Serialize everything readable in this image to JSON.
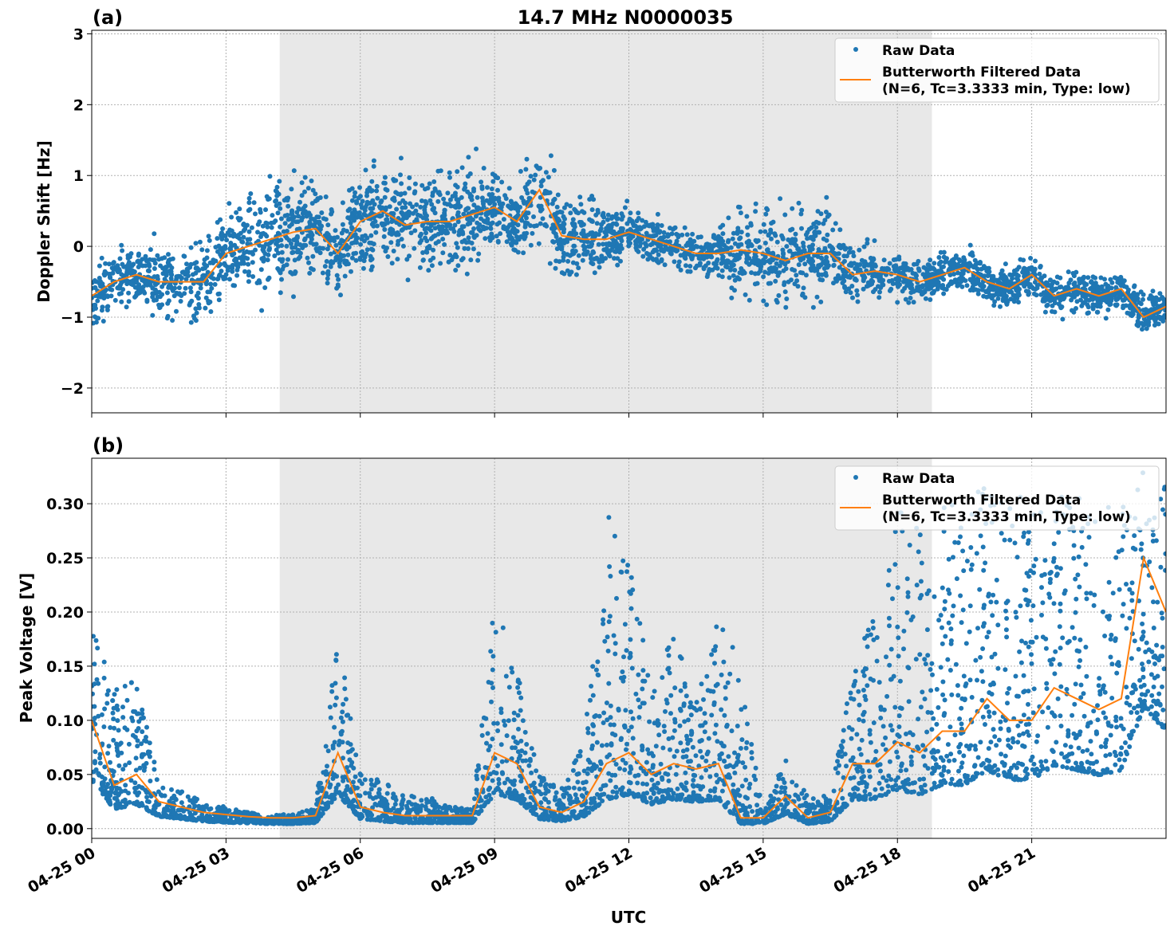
{
  "chart_data": [
    {
      "type": "scatter",
      "panel_label": "(a)",
      "title": "14.7 MHz N0000035",
      "xlabel": "",
      "ylabel": "Doppler Shift [Hz]",
      "xlim_hours": [
        0,
        24
      ],
      "ylim": [
        -2.35,
        3.05
      ],
      "yticks": [
        -2,
        -1,
        0,
        1,
        2,
        3
      ],
      "ytick_labels": [
        "−2",
        "−1",
        "0",
        "1",
        "2",
        "3"
      ],
      "grid": true,
      "shaded_interval_hours": [
        4.2,
        18.77
      ],
      "legend": {
        "position": "top-right",
        "entries": [
          "Raw Data",
          "Butterworth Filtered Data",
          "(N=6, Tc=3.3333 min, Type: low)"
        ]
      },
      "x_hours": [
        0,
        0.5,
        1,
        1.5,
        2,
        2.5,
        3,
        3.5,
        4,
        4.5,
        5,
        5.5,
        6,
        6.5,
        7,
        7.5,
        8,
        8.5,
        9,
        9.5,
        10,
        10.5,
        11,
        11.5,
        12,
        12.5,
        13,
        13.5,
        14,
        14.5,
        15,
        15.5,
        16,
        16.5,
        17,
        17.5,
        18,
        18.5,
        19,
        19.5,
        20,
        20.5,
        21,
        21.5,
        22,
        22.5,
        23,
        23.5,
        24
      ],
      "series": [
        {
          "name": "Butterworth Filtered Data",
          "values": [
            -0.7,
            -0.5,
            -0.4,
            -0.5,
            -0.5,
            -0.5,
            -0.1,
            0.0,
            0.1,
            0.2,
            0.25,
            -0.1,
            0.35,
            0.5,
            0.3,
            0.35,
            0.35,
            0.45,
            0.55,
            0.35,
            0.8,
            0.15,
            0.1,
            0.1,
            0.2,
            0.1,
            0.0,
            -0.1,
            -0.1,
            -0.05,
            -0.1,
            -0.2,
            -0.1,
            -0.1,
            -0.4,
            -0.35,
            -0.4,
            -0.5,
            -0.4,
            -0.3,
            -0.5,
            -0.6,
            -0.4,
            -0.7,
            -0.6,
            -0.7,
            -0.6,
            -1.0,
            -0.85
          ]
        },
        {
          "name": "Raw Data",
          "spread": [
            0.5,
            0.5,
            0.5,
            0.6,
            0.6,
            0.7,
            0.8,
            0.9,
            0.9,
            0.9,
            0.9,
            0.6,
            0.8,
            0.8,
            0.8,
            0.8,
            0.8,
            0.8,
            0.7,
            0.6,
            0.9,
            0.8,
            0.7,
            0.5,
            0.4,
            0.4,
            0.4,
            0.35,
            0.4,
            0.8,
            0.8,
            0.8,
            0.8,
            0.7,
            0.45,
            0.4,
            0.4,
            0.35,
            0.35,
            0.35,
            0.35,
            0.35,
            0.35,
            0.4,
            0.35,
            0.35,
            0.35,
            0.35,
            0.35
          ]
        }
      ],
      "colors": {
        "raw": "#1f77b4",
        "filtered": "#ff7f0e",
        "shade": "#e8e8e8"
      }
    },
    {
      "type": "scatter",
      "panel_label": "(b)",
      "title": "",
      "xlabel": "UTC",
      "ylabel": "Peak Voltage [V]",
      "xlim_hours": [
        0,
        24
      ],
      "ylim": [
        -0.009,
        0.342
      ],
      "yticks": [
        0,
        0.05,
        0.1,
        0.15,
        0.2,
        0.25,
        0.3
      ],
      "ytick_labels": [
        "0.00",
        "0.05",
        "0.10",
        "0.15",
        "0.20",
        "0.25",
        "0.30"
      ],
      "xticks_hours": [
        0,
        3,
        6,
        9,
        12,
        15,
        18,
        21
      ],
      "xtick_labels": [
        "04-25 00",
        "04-25 03",
        "04-25 06",
        "04-25 09",
        "04-25 12",
        "04-25 15",
        "04-25 18",
        "04-25 21"
      ],
      "grid": true,
      "shaded_interval_hours": [
        4.2,
        18.77
      ],
      "legend": {
        "position": "top-right",
        "entries": [
          "Raw Data",
          "Butterworth Filtered Data",
          "(N=6, Tc=3.3333 min, Type: low)"
        ]
      },
      "x_hours": [
        0,
        0.5,
        1,
        1.5,
        2,
        2.5,
        3,
        3.5,
        4,
        4.5,
        5,
        5.5,
        6,
        6.5,
        7,
        7.5,
        8,
        8.5,
        9,
        9.5,
        10,
        10.5,
        11,
        11.5,
        12,
        12.5,
        13,
        13.5,
        14,
        14.5,
        15,
        15.5,
        16,
        16.5,
        17,
        17.5,
        18,
        18.5,
        19,
        19.5,
        20,
        20.5,
        21,
        21.5,
        22,
        22.5,
        23,
        23.5,
        24
      ],
      "series": [
        {
          "name": "Butterworth Filtered Data",
          "values": [
            0.1,
            0.04,
            0.05,
            0.025,
            0.02,
            0.015,
            0.013,
            0.011,
            0.01,
            0.01,
            0.012,
            0.07,
            0.02,
            0.015,
            0.012,
            0.012,
            0.012,
            0.012,
            0.07,
            0.06,
            0.02,
            0.015,
            0.025,
            0.06,
            0.07,
            0.05,
            0.06,
            0.055,
            0.06,
            0.01,
            0.01,
            0.03,
            0.01,
            0.015,
            0.06,
            0.06,
            0.08,
            0.07,
            0.09,
            0.09,
            0.12,
            0.1,
            0.1,
            0.13,
            0.12,
            0.11,
            0.12,
            0.25,
            0.2
          ]
        },
        {
          "name": "Raw Data",
          "max": [
            0.19,
            0.13,
            0.15,
            0.04,
            0.035,
            0.025,
            0.02,
            0.015,
            0.013,
            0.013,
            0.02,
            0.18,
            0.05,
            0.045,
            0.03,
            0.03,
            0.02,
            0.02,
            0.21,
            0.15,
            0.05,
            0.04,
            0.08,
            0.29,
            0.27,
            0.13,
            0.18,
            0.14,
            0.2,
            0.15,
            0.02,
            0.065,
            0.03,
            0.03,
            0.16,
            0.2,
            0.3,
            0.28,
            0.3,
            0.31,
            0.32,
            0.3,
            0.32,
            0.31,
            0.31,
            0.3,
            0.3,
            0.33,
            0.32
          ]
        }
      ],
      "colors": {
        "raw": "#1f77b4",
        "filtered": "#ff7f0e",
        "shade": "#e8e8e8"
      }
    }
  ]
}
